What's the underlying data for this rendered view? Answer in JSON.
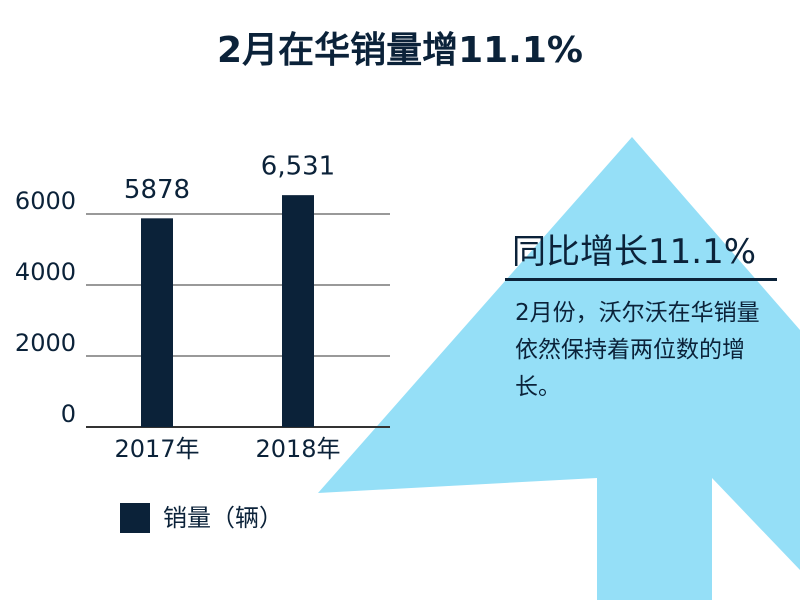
{
  "chart_data": {
    "type": "bar",
    "title": "2月在华销量增11.1%",
    "categories": [
      "2017年",
      "2018年"
    ],
    "series": [
      {
        "name": "销量（辆）",
        "color": "#0b2239",
        "values": [
          5878,
          6531
        ],
        "value_labels": [
          "5878",
          "6,531"
        ]
      }
    ],
    "ylim": [
      0,
      7000
    ],
    "yticks": [
      0,
      2000,
      4000,
      6000
    ],
    "grid": true,
    "annotation_title": "同比增长11.1%",
    "annotation_text": "2月份，沃尔沃在华销量依然保持着两位数的增长。"
  }
}
